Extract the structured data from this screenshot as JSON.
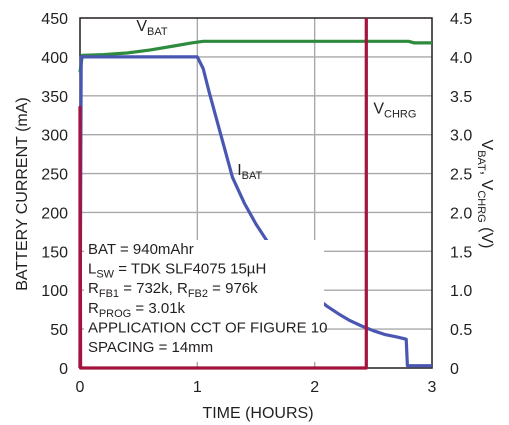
{
  "chart_data": {
    "type": "line",
    "xlabel": "TIME (HOURS)",
    "ylabel_left": "BATTERY CURRENT (mA)",
    "ylabel_right": {
      "v": "V",
      "bat_sub": "BAT",
      "sep": ", V",
      "chrg_sub": "CHRG",
      "unit": " (V)"
    },
    "xlim": [
      0,
      3
    ],
    "ylim_left": [
      0,
      450
    ],
    "ylim_right": [
      0,
      4.5
    ],
    "x_ticks": [
      "0",
      "1",
      "2",
      "3"
    ],
    "y_left_ticks": [
      "0",
      "50",
      "100",
      "150",
      "200",
      "250",
      "300",
      "350",
      "400",
      "450"
    ],
    "y_right_ticks": [
      "0",
      "0.5",
      "1.0",
      "1.5",
      "2.0",
      "2.5",
      "3.0",
      "3.5",
      "4.0",
      "4.5"
    ],
    "grid": true,
    "series": [
      {
        "name": "VBAT",
        "label_main": "V",
        "label_sub": "BAT",
        "axis": "right",
        "color": "#2e8b3e",
        "points": [
          [
            0.0,
            3.8
          ],
          [
            0.02,
            4.02
          ],
          [
            0.2,
            4.03
          ],
          [
            0.4,
            4.05
          ],
          [
            0.6,
            4.09
          ],
          [
            0.8,
            4.14
          ],
          [
            0.95,
            4.18
          ],
          [
            1.05,
            4.2
          ],
          [
            1.5,
            4.2
          ],
          [
            2.0,
            4.2
          ],
          [
            2.5,
            4.2
          ],
          [
            2.8,
            4.2
          ],
          [
            2.85,
            4.18
          ],
          [
            3.0,
            4.18
          ]
        ]
      },
      {
        "name": "IBAT",
        "label_main": "I",
        "label_sub": "BAT",
        "axis": "left",
        "color": "#4a57b2",
        "points": [
          [
            0.0,
            0
          ],
          [
            0.01,
            400
          ],
          [
            0.5,
            400
          ],
          [
            1.0,
            400
          ],
          [
            1.05,
            385
          ],
          [
            1.1,
            355
          ],
          [
            1.2,
            300
          ],
          [
            1.3,
            245
          ],
          [
            1.4,
            212
          ],
          [
            1.5,
            185
          ],
          [
            1.6,
            162
          ],
          [
            1.7,
            140
          ],
          [
            1.8,
            122
          ],
          [
            1.9,
            106
          ],
          [
            2.0,
            92
          ],
          [
            2.1,
            80
          ],
          [
            2.2,
            70
          ],
          [
            2.3,
            61
          ],
          [
            2.4,
            54
          ],
          [
            2.5,
            48
          ],
          [
            2.6,
            43
          ],
          [
            2.7,
            40
          ],
          [
            2.78,
            37
          ],
          [
            2.79,
            3
          ],
          [
            3.0,
            3
          ]
        ]
      },
      {
        "name": "VCHRG",
        "label_main": "V",
        "label_sub": "CHRG",
        "axis": "right",
        "color": "#a3133d",
        "points": [
          [
            0.0,
            0.0
          ],
          [
            0.0,
            3.35
          ],
          [
            0.005,
            0.0
          ],
          [
            2.44,
            0.0
          ],
          [
            2.44,
            4.5
          ]
        ]
      }
    ],
    "annotations": [
      {
        "parts": [
          [
            "BAT = 940mAhr",
            ""
          ]
        ]
      },
      {
        "parts": [
          [
            "L",
            ""
          ],
          [
            "SW",
            "sub"
          ],
          [
            " = TDK SLF4075 15µH",
            ""
          ]
        ]
      },
      {
        "parts": [
          [
            "R",
            ""
          ],
          [
            "FB1",
            "sub"
          ],
          [
            " = 732k, R",
            ""
          ],
          [
            "FB2",
            "sub"
          ],
          [
            " = 976k",
            ""
          ]
        ]
      },
      {
        "parts": [
          [
            "R",
            ""
          ],
          [
            "PROG",
            "sub"
          ],
          [
            " = 3.01k",
            ""
          ]
        ]
      },
      {
        "parts": [
          [
            "APPLICATION CCT OF FIGURE 10",
            ""
          ]
        ]
      },
      {
        "parts": [
          [
            "SPACING = 14mm",
            ""
          ]
        ]
      }
    ]
  }
}
